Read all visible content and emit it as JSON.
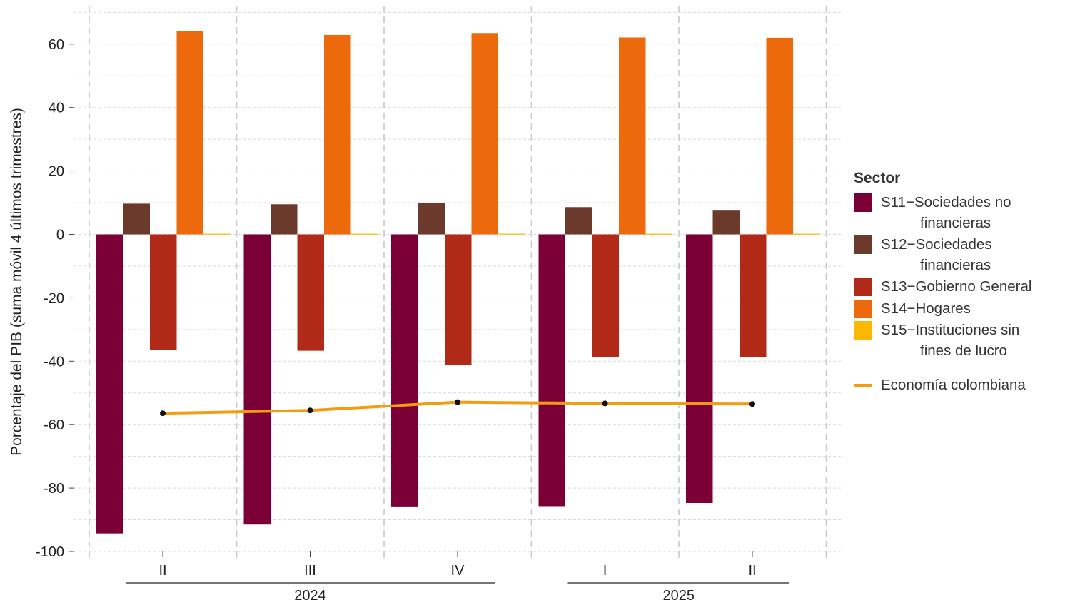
{
  "chart_data": {
    "type": "bar",
    "title": "",
    "xlabel": "",
    "ylabel": "Porcentaje del PIB (suma móvil 4 últimos trimestres)",
    "ylim": [
      -100,
      70
    ],
    "yticks": [
      -100,
      -80,
      -60,
      -40,
      -20,
      0,
      20,
      40,
      60
    ],
    "grid": true,
    "legend_position": "right",
    "categories": [
      "II",
      "III",
      "IV",
      "I",
      "II"
    ],
    "years": [
      {
        "label": "2024",
        "categories": [
          "II",
          "III",
          "IV"
        ]
      },
      {
        "label": "2025",
        "categories": [
          "I",
          "II"
        ]
      }
    ],
    "series": [
      {
        "name": "S11-Sociedades no financieras",
        "color": "#7a0036",
        "values": [
          -94.3,
          -91.5,
          -85.8,
          -85.7,
          -84.7
        ]
      },
      {
        "name": "S12-Sociedades financieras",
        "color": "#6b3a2c",
        "values": [
          9.7,
          9.5,
          10.0,
          8.6,
          7.5
        ]
      },
      {
        "name": "S13-Gobierno General",
        "color": "#b02a17",
        "values": [
          -36.5,
          -36.7,
          -41.1,
          -38.8,
          -38.7
        ]
      },
      {
        "name": "S14-Hogares",
        "color": "#ec6a0c",
        "values": [
          64.2,
          62.9,
          63.5,
          62.1,
          62.0
        ]
      },
      {
        "name": "S15-Instituciones sin fines de lucro",
        "color": "#fab800",
        "values": [
          0.2,
          0.2,
          0.2,
          0.2,
          0.2
        ]
      }
    ],
    "line_series": {
      "name": "Economía colombiana",
      "color": "#f39c12",
      "values": [
        -56.4,
        -55.5,
        -52.9,
        -53.3,
        -53.5
      ]
    }
  },
  "legend": {
    "title": "Sector",
    "items": [
      {
        "color": "#7a0036",
        "line1": "S11−Sociedades no",
        "line2": "financieras"
      },
      {
        "color": "#6b3a2c",
        "line1": "S12−Sociedades",
        "line2": "financieras"
      },
      {
        "color": "#b02a17",
        "line1": "S13−Gobierno General",
        "line2": ""
      },
      {
        "color": "#ec6a0c",
        "line1": "S14−Hogares",
        "line2": ""
      },
      {
        "color": "#fab800",
        "line1": "S15−Instituciones sin",
        "line2": "fines de lucro"
      }
    ],
    "line_item": {
      "label": "Economía colombiana",
      "color": "#f39c12"
    }
  }
}
